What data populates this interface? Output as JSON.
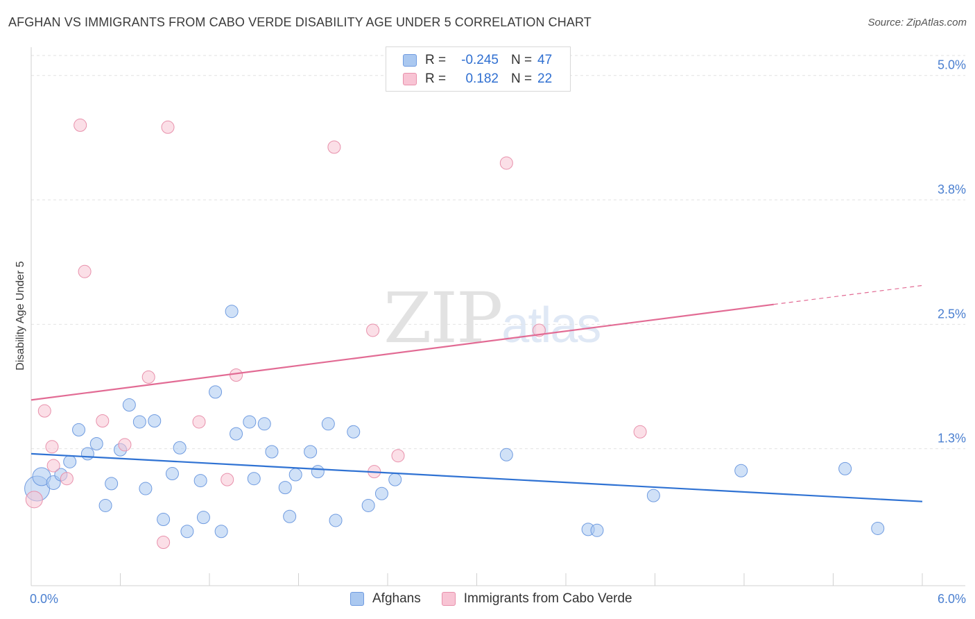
{
  "title": "AFGHAN VS IMMIGRANTS FROM CABO VERDE DISABILITY AGE UNDER 5 CORRELATION CHART",
  "source": "Source: ZipAtlas.com",
  "watermark": {
    "zip": "ZIP",
    "atlas": "atlas"
  },
  "legend": {
    "rows": [
      {
        "r_label": "R =",
        "r_value": "-0.245",
        "n_label": "N =",
        "n_value": "47",
        "color": "#aac8f0",
        "border": "#6f9be0"
      },
      {
        "r_label": "R =",
        "r_value": "0.182",
        "n_label": "N =",
        "n_value": "22",
        "color": "#f8c4d4",
        "border": "#e890ab"
      }
    ]
  },
  "bottom_legend": [
    {
      "label": "Afghans",
      "color": "#aac8f0",
      "border": "#6f9be0"
    },
    {
      "label": "Immigrants from Cabo Verde",
      "color": "#f8c4d4",
      "border": "#e890ab"
    }
  ],
  "chart_data": {
    "type": "scatter",
    "title": "AFGHAN VS IMMIGRANTS FROM CABO VERDE DISABILITY AGE UNDER 5 CORRELATION CHART",
    "xlabel": "",
    "ylabel": "Disability Age Under 5",
    "xlim": [
      0,
      6.0
    ],
    "ylim": [
      0,
      5.2
    ],
    "x_tick_labels": [
      "0.0%",
      "6.0%"
    ],
    "y_ticks": [
      1.25,
      2.5,
      3.75,
      5.0
    ],
    "y_tick_labels": [
      "1.3%",
      "2.5%",
      "3.8%",
      "5.0%"
    ],
    "grid": true,
    "series": [
      {
        "name": "Afghans",
        "color": "#aac8f0",
        "stroke": "#6f9be0",
        "line_color": "#2f72d3",
        "trend": [
          [
            0,
            1.2
          ],
          [
            6.0,
            0.72
          ]
        ],
        "points": [
          [
            0.04,
            0.85,
            18
          ],
          [
            0.07,
            0.97,
            13
          ],
          [
            0.15,
            0.91,
            10
          ],
          [
            0.2,
            0.99,
            9
          ],
          [
            0.26,
            1.12,
            9
          ],
          [
            0.32,
            1.44,
            9
          ],
          [
            0.38,
            1.2,
            9
          ],
          [
            0.44,
            1.3,
            9
          ],
          [
            0.5,
            0.68,
            9
          ],
          [
            0.54,
            0.9,
            9
          ],
          [
            0.6,
            1.24,
            9
          ],
          [
            0.66,
            1.69,
            9
          ],
          [
            0.73,
            1.52,
            9
          ],
          [
            0.77,
            0.85,
            9
          ],
          [
            0.83,
            1.53,
            9
          ],
          [
            0.89,
            0.54,
            9
          ],
          [
            0.95,
            1.0,
            9
          ],
          [
            1.0,
            1.26,
            9
          ],
          [
            1.05,
            0.42,
            9
          ],
          [
            1.14,
            0.93,
            9
          ],
          [
            1.16,
            0.56,
            9
          ],
          [
            1.24,
            1.82,
            9
          ],
          [
            1.28,
            0.42,
            9
          ],
          [
            1.35,
            2.63,
            9
          ],
          [
            1.38,
            1.4,
            9
          ],
          [
            1.47,
            1.52,
            9
          ],
          [
            1.5,
            0.95,
            9
          ],
          [
            1.57,
            1.5,
            9
          ],
          [
            1.62,
            1.22,
            9
          ],
          [
            1.71,
            0.86,
            9
          ],
          [
            1.74,
            0.57,
            9
          ],
          [
            1.78,
            0.99,
            9
          ],
          [
            1.88,
            1.22,
            9
          ],
          [
            1.93,
            1.02,
            9
          ],
          [
            2.0,
            1.5,
            9
          ],
          [
            2.05,
            0.53,
            9
          ],
          [
            2.17,
            1.42,
            9
          ],
          [
            2.27,
            0.68,
            9
          ],
          [
            2.36,
            0.8,
            9
          ],
          [
            2.45,
            0.94,
            9
          ],
          [
            3.2,
            1.19,
            9
          ],
          [
            3.75,
            0.44,
            9
          ],
          [
            3.81,
            0.43,
            9
          ],
          [
            4.19,
            0.78,
            9
          ],
          [
            4.78,
            1.03,
            9
          ],
          [
            5.48,
            1.05,
            9
          ],
          [
            5.7,
            0.45,
            9
          ]
        ]
      },
      {
        "name": "Immigrants from Cabo Verde",
        "color": "#f8c4d4",
        "stroke": "#e890ab",
        "line_color": "#e26b94",
        "trend": [
          [
            0,
            1.74
          ],
          [
            5.0,
            2.7
          ]
        ],
        "trend_dashed": [
          [
            5.0,
            2.7
          ],
          [
            6.0,
            2.89
          ]
        ],
        "points": [
          [
            0.02,
            0.74,
            12
          ],
          [
            0.09,
            1.63,
            9
          ],
          [
            0.14,
            1.27,
            9
          ],
          [
            0.15,
            1.08,
            9
          ],
          [
            0.24,
            0.95,
            9
          ],
          [
            0.33,
            4.5,
            9
          ],
          [
            0.36,
            3.03,
            9
          ],
          [
            0.48,
            1.53,
            9
          ],
          [
            0.63,
            1.29,
            9
          ],
          [
            0.79,
            1.97,
            9
          ],
          [
            0.89,
            0.31,
            9
          ],
          [
            0.92,
            4.48,
            9
          ],
          [
            1.13,
            1.52,
            9
          ],
          [
            1.32,
            0.94,
            9
          ],
          [
            1.38,
            1.99,
            9
          ],
          [
            2.04,
            4.28,
            9
          ],
          [
            2.3,
            2.44,
            9
          ],
          [
            2.31,
            1.02,
            9
          ],
          [
            2.47,
            1.18,
            9
          ],
          [
            3.2,
            4.12,
            9
          ],
          [
            3.42,
            2.44,
            9
          ],
          [
            4.1,
            1.42,
            9
          ]
        ]
      }
    ]
  }
}
